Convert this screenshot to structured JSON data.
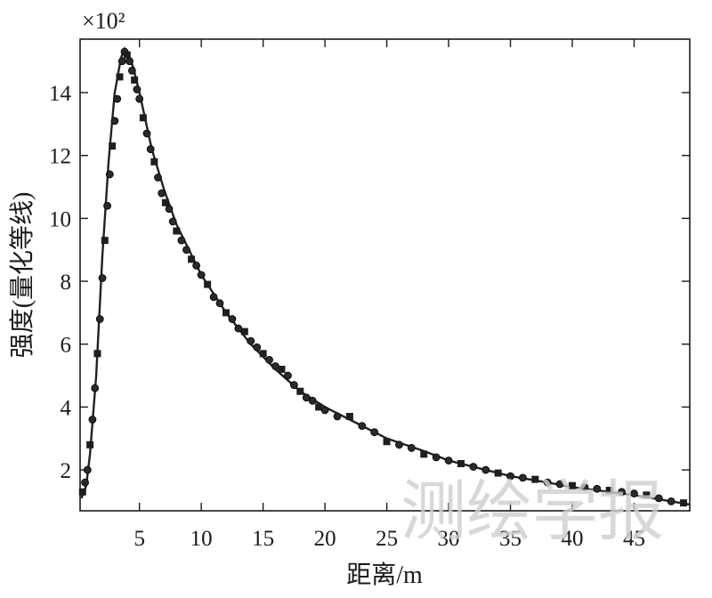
{
  "chart_data": {
    "type": "scatter",
    "title": "",
    "xlabel": "距离/m",
    "ylabel": "强度(量化等线)",
    "y_multiplier": "×10²",
    "xlim": [
      0.2,
      49.5
    ],
    "ylim": [
      0.7,
      15.7
    ],
    "x_ticks": [
      5,
      10,
      15,
      20,
      25,
      30,
      35,
      40,
      45
    ],
    "y_ticks": [
      2,
      4,
      6,
      8,
      10,
      12,
      14
    ],
    "grid": false,
    "series": [
      {
        "style": "line",
        "x": [
          0.3,
          0.7,
          1.0,
          1.5,
          2.0,
          2.5,
          3.0,
          3.5,
          3.8,
          4.0,
          4.5,
          5.0,
          6.0,
          7.0,
          8.0,
          9.0,
          10.0,
          12.0,
          14.0,
          16.0,
          18.0,
          20.0,
          22.0,
          25.0,
          28.0,
          30.0,
          33.0,
          35.0,
          38.0,
          40.0,
          43.0,
          45.0,
          48.0,
          49.5
        ],
        "y": [
          1.1,
          1.5,
          2.5,
          5.0,
          8.8,
          11.8,
          14.0,
          15.1,
          15.4,
          15.3,
          14.8,
          14.0,
          12.2,
          10.9,
          9.8,
          9.0,
          8.2,
          7.0,
          6.0,
          5.2,
          4.5,
          4.0,
          3.6,
          3.0,
          2.6,
          2.3,
          2.0,
          1.8,
          1.6,
          1.45,
          1.3,
          1.2,
          1.0,
          0.9
        ]
      },
      {
        "style": "markers",
        "x": [
          0.4,
          0.6,
          0.8,
          1.0,
          1.2,
          1.4,
          1.6,
          1.8,
          2.0,
          2.2,
          2.4,
          2.6,
          2.8,
          3.0,
          3.2,
          3.4,
          3.6,
          3.8,
          4.0,
          4.2,
          4.4,
          4.6,
          4.8,
          5.0,
          5.3,
          5.6,
          5.9,
          6.2,
          6.5,
          6.8,
          7.1,
          7.4,
          7.7,
          8.0,
          8.4,
          8.8,
          9.2,
          9.6,
          10.0,
          10.5,
          11.0,
          11.5,
          12.0,
          12.5,
          13.0,
          13.5,
          14.0,
          14.5,
          15.0,
          15.5,
          16.0,
          16.5,
          17.0,
          17.5,
          18.0,
          18.5,
          19.0,
          19.5,
          20.0,
          21.0,
          22.0,
          23.0,
          24.0,
          25.0,
          26.0,
          27.0,
          28.0,
          29.0,
          30.0,
          31.0,
          32.0,
          33.0,
          34.0,
          35.0,
          36.0,
          37.0,
          38.0,
          39.0,
          40.0,
          41.0,
          42.0,
          43.0,
          44.0,
          45.0,
          46.0,
          47.0,
          48.0,
          49.0
        ],
        "y": [
          1.3,
          1.6,
          2.0,
          2.8,
          3.6,
          4.6,
          5.7,
          6.8,
          8.1,
          9.3,
          10.4,
          11.4,
          12.3,
          13.1,
          13.8,
          14.5,
          15.0,
          15.3,
          15.2,
          15.0,
          14.7,
          14.4,
          14.1,
          13.8,
          13.2,
          12.7,
          12.2,
          11.8,
          11.3,
          10.8,
          10.5,
          10.3,
          9.9,
          9.6,
          9.3,
          9.0,
          8.7,
          8.5,
          8.2,
          7.9,
          7.5,
          7.3,
          7.0,
          6.8,
          6.5,
          6.4,
          6.1,
          5.9,
          5.7,
          5.5,
          5.3,
          5.2,
          5.0,
          4.7,
          4.5,
          4.3,
          4.2,
          4.0,
          3.9,
          3.7,
          3.7,
          3.4,
          3.2,
          2.9,
          2.8,
          2.7,
          2.5,
          2.4,
          2.3,
          2.2,
          2.1,
          2.0,
          1.9,
          1.8,
          1.75,
          1.7,
          1.6,
          1.55,
          1.5,
          1.45,
          1.4,
          1.35,
          1.3,
          1.25,
          1.2,
          1.1,
          1.0,
          0.95
        ]
      }
    ]
  },
  "watermark": "测绘学报"
}
